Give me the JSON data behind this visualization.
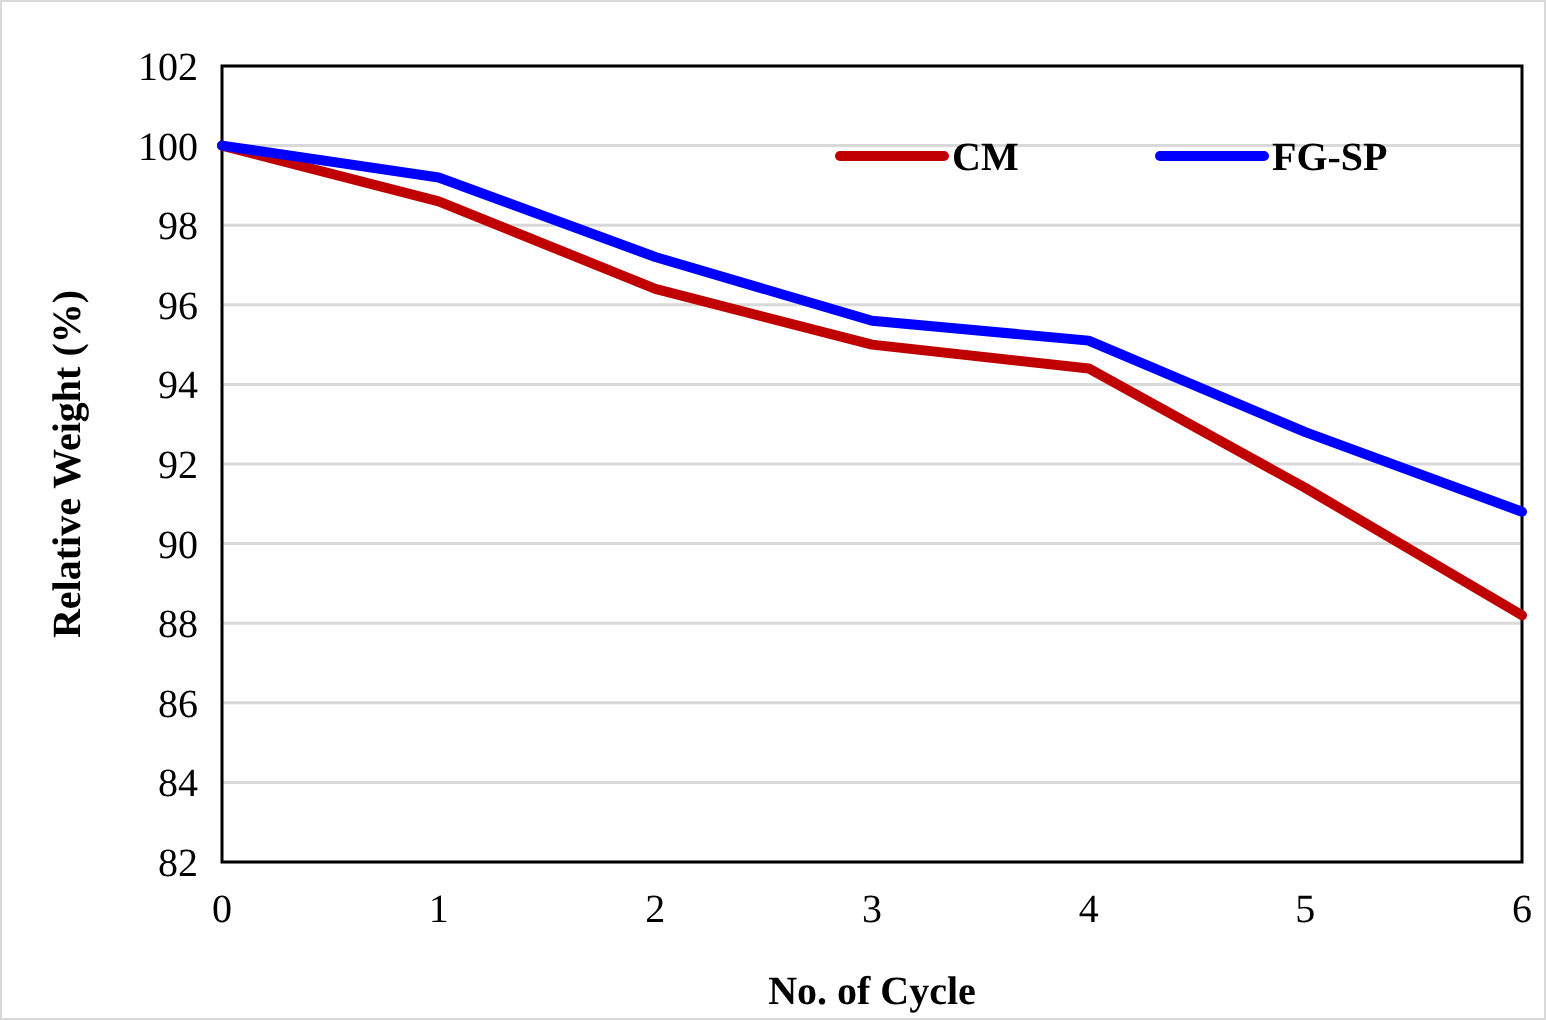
{
  "chart_data": {
    "type": "line",
    "xlabel": "No. of Cycle",
    "ylabel": "Relative Weight (%)",
    "x": [
      0,
      1,
      2,
      3,
      4,
      5,
      6
    ],
    "series": [
      {
        "name": "CM",
        "color": "#c00000",
        "values": [
          100,
          98.6,
          96.4,
          95.0,
          94.4,
          91.4,
          88.2
        ]
      },
      {
        "name": "FG-SP",
        "color": "#0000ff",
        "values": [
          100,
          99.2,
          97.2,
          95.6,
          95.1,
          92.8,
          90.8
        ]
      }
    ],
    "xlim": [
      0,
      6
    ],
    "xticks": [
      0,
      1,
      2,
      3,
      4,
      5,
      6
    ],
    "ylim": [
      82,
      102
    ],
    "yticks": [
      82,
      84,
      86,
      88,
      90,
      92,
      94,
      96,
      98,
      100,
      102
    ],
    "grid": "y",
    "legend": "top right",
    "marker": "none",
    "line_style": "solid"
  }
}
